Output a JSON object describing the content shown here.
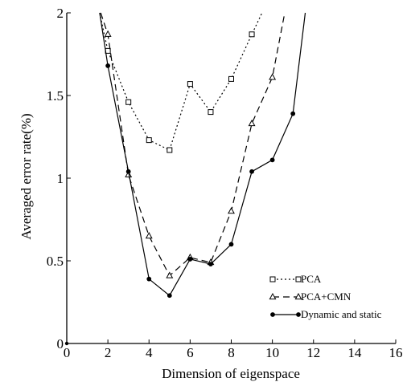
{
  "chart_data": {
    "type": "line",
    "xlabel": "Dimension of eigenspace",
    "ylabel": "Averaged error rate(%)",
    "xlim": [
      0,
      16
    ],
    "ylim": [
      0,
      2
    ],
    "xticks": [
      "0",
      "2",
      "4",
      "6",
      "8",
      "10",
      "12",
      "14",
      "16"
    ],
    "yticks": [
      "0",
      "0.5",
      "1",
      "1.5",
      "2"
    ],
    "grid": false,
    "legend_position": "bottom-right",
    "series": [
      {
        "name": "PCA",
        "marker": "square",
        "line_style": "dotted",
        "x": [
          1.6,
          2,
          3,
          4,
          5,
          6,
          7,
          8,
          9,
          9.5
        ],
        "y": [
          2.0,
          1.77,
          1.46,
          1.23,
          1.17,
          1.57,
          1.4,
          1.6,
          1.87,
          2.0
        ],
        "marker_x": [
          2,
          3,
          4,
          5,
          6,
          7,
          8,
          9
        ],
        "marker_y": [
          1.77,
          1.46,
          1.23,
          1.17,
          1.57,
          1.4,
          1.6,
          1.87
        ]
      },
      {
        "name": "PCA+CMN",
        "marker": "triangle",
        "line_style": "dashed",
        "x": [
          1.65,
          2,
          3,
          4,
          5,
          6,
          7,
          8,
          9,
          10,
          10.6
        ],
        "y": [
          2.0,
          1.87,
          1.02,
          0.65,
          0.41,
          0.52,
          0.49,
          0.8,
          1.33,
          1.61,
          2.0
        ],
        "marker_x": [
          2,
          3,
          4,
          5,
          6,
          7,
          8,
          9,
          10
        ],
        "marker_y": [
          1.87,
          1.02,
          0.65,
          0.41,
          0.52,
          0.49,
          0.8,
          1.33,
          1.61
        ]
      },
      {
        "name": "Dynamic and static",
        "marker": "circle",
        "line_style": "solid",
        "x": [
          1.6,
          2,
          3,
          4,
          5,
          6,
          7,
          8,
          9,
          10,
          11,
          11.6
        ],
        "y": [
          2.0,
          1.68,
          1.04,
          0.39,
          0.29,
          0.51,
          0.48,
          0.6,
          1.04,
          1.11,
          1.39,
          2.0
        ],
        "marker_x": [
          2,
          3,
          4,
          5,
          6,
          7,
          8,
          9,
          10,
          11
        ],
        "marker_y": [
          1.68,
          1.04,
          0.39,
          0.29,
          0.51,
          0.48,
          0.6,
          1.04,
          1.11,
          1.39
        ]
      }
    ],
    "colors": {
      "line": "#000000",
      "background": "#ffffff"
    }
  }
}
